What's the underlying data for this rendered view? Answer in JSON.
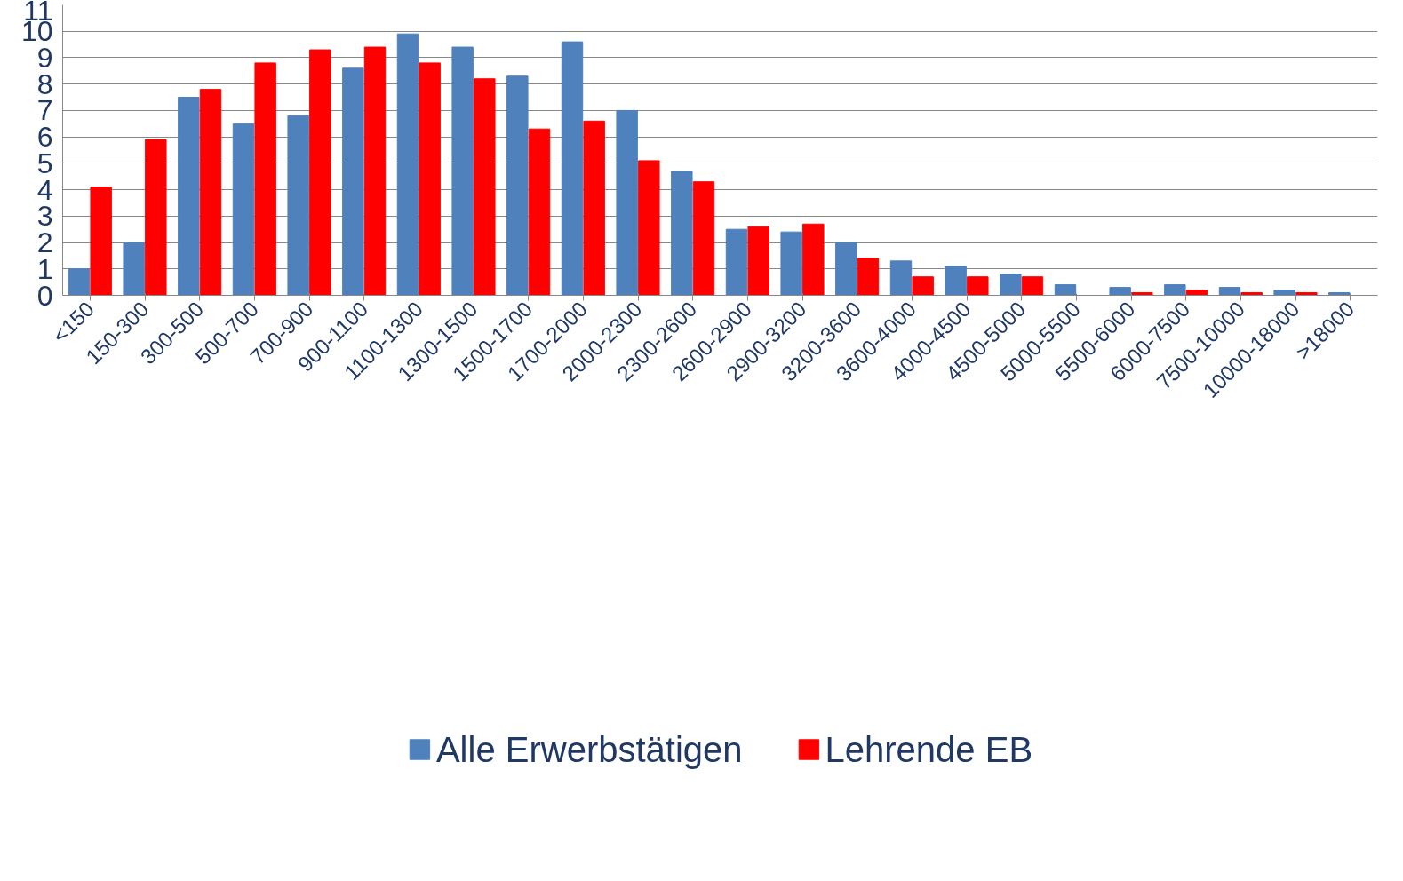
{
  "chart_data": {
    "type": "bar",
    "categories": [
      "<150",
      "150-300",
      "300-500",
      "500-700",
      "700-900",
      "900-1100",
      "1100-1300",
      "1300-1500",
      "1500-1700",
      "1700-2000",
      "2000-2300",
      "2300-2600",
      "2600-2900",
      "2900-3200",
      "3200-3600",
      "3600-4000",
      "4000-4500",
      "4500-5000",
      "5000-5500",
      "5500-6000",
      "6000-7500",
      "7500-10000",
      "10000-18000",
      ">18000"
    ],
    "series": [
      {
        "name": "Alle Erwerbstätigen",
        "color": "#4f81bd",
        "values": [
          1.0,
          2.0,
          7.5,
          6.5,
          6.8,
          8.6,
          9.9,
          9.4,
          8.3,
          9.6,
          7.0,
          4.7,
          2.5,
          2.4,
          2.0,
          1.3,
          1.1,
          0.8,
          0.4,
          0.3,
          0.4,
          0.3,
          0.2,
          0.1
        ]
      },
      {
        "name": "Lehrende EB",
        "color": "#ff0000",
        "values": [
          4.1,
          5.9,
          7.8,
          8.8,
          9.3,
          9.4,
          8.8,
          8.2,
          6.3,
          6.6,
          5.1,
          4.3,
          2.6,
          2.7,
          1.4,
          0.7,
          0.7,
          0.7,
          null,
          0.1,
          0.2,
          0.1,
          0.1,
          null
        ]
      }
    ],
    "ylim": [
      0,
      11
    ],
    "yticks": [
      0,
      1,
      2,
      3,
      4,
      5,
      6,
      7,
      8,
      9,
      10,
      11
    ],
    "grid": "y",
    "legend": "bottom"
  }
}
